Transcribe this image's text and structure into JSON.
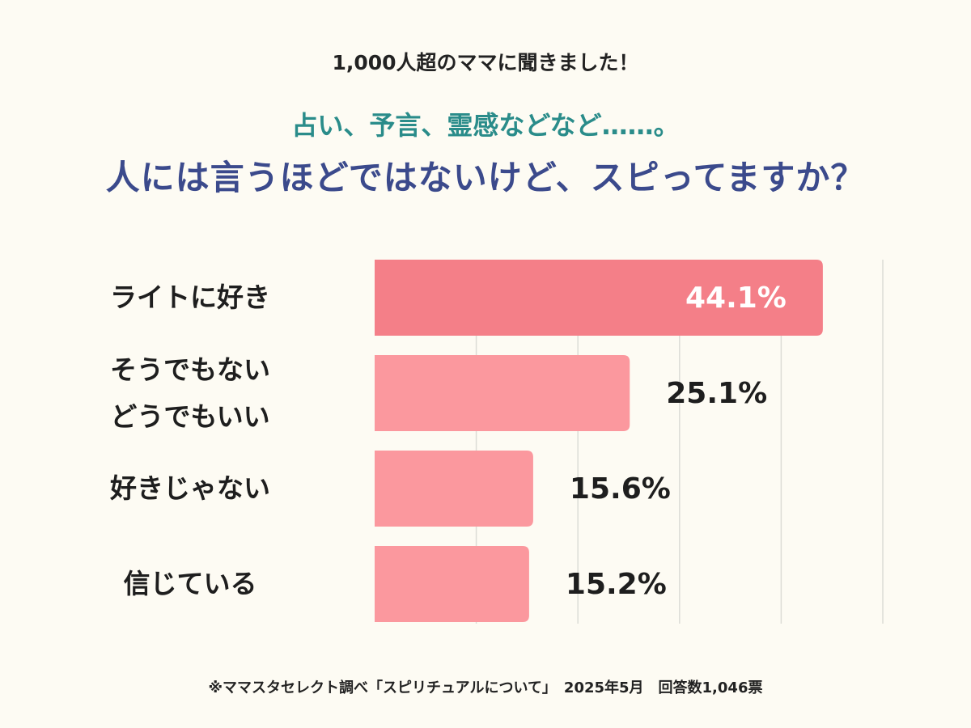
{
  "chart_data": {
    "type": "bar",
    "orientation": "horizontal",
    "kicker": "1,000人超のママに聞きました！",
    "subtitle": "占い、予言、霊感などなど……。",
    "title": "人には言うほどではないけど、スピってますか？",
    "categories": [
      "ライトに好き",
      "そうでもない\nどうでもいい",
      "好きじゃない",
      "信じている"
    ],
    "values": [
      44.1,
      25.1,
      15.6,
      15.2
    ],
    "value_labels": [
      "44.1%",
      "25.1%",
      "15.6%",
      "15.2%"
    ],
    "colors": [
      "#f47f88",
      "#fb989e",
      "#fb989e",
      "#fb989e"
    ],
    "xlim": [
      0,
      50
    ],
    "xticks": [
      10,
      20,
      30,
      40,
      50
    ],
    "grid": true,
    "note": "※ママスタセレクト調べ「スピリチュアルについて」　2025年5月　回答数1,046票"
  }
}
